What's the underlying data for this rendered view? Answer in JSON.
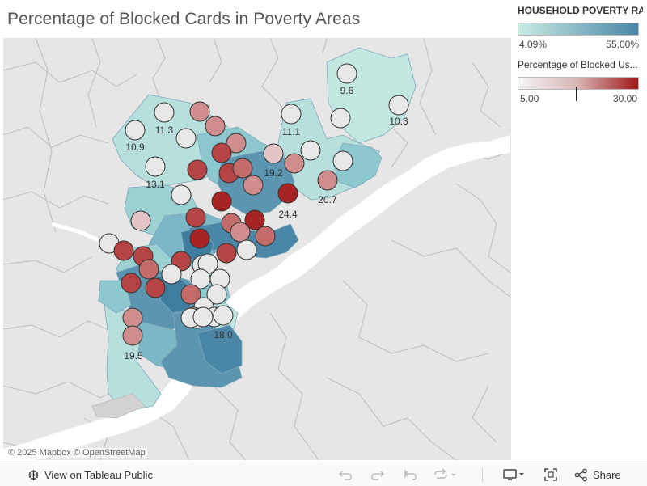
{
  "title": "Percentage of Blocked Cards in Poverty Areas",
  "legend_poverty": {
    "title": "HOUSEHOLD POVERTY RA...",
    "min": "4.09%",
    "max": "55.00%",
    "color_low": "#c9ebe4",
    "color_high": "#4a86a6"
  },
  "legend_blocked": {
    "title": "Percentage of Blocked Us...",
    "min": "5.00",
    "max": "30.00",
    "color_low": "#f5f5f5",
    "color_high": "#a01818"
  },
  "map_attribution": "© 2025 Mapbox  © OpenStreetMap",
  "circle_labels": [
    "9.6",
    "10.3",
    "11.3",
    "10.9",
    "11.1",
    "13.1",
    "19.2",
    "20.7",
    "24.4",
    "18.0",
    "19.5"
  ],
  "toolbar": {
    "view_label": "View on Tableau Public",
    "share_label": "Share"
  },
  "colors": {
    "water": "#ffffff",
    "land": "#e6e6e6",
    "boundary": "#bdbdbd"
  }
}
